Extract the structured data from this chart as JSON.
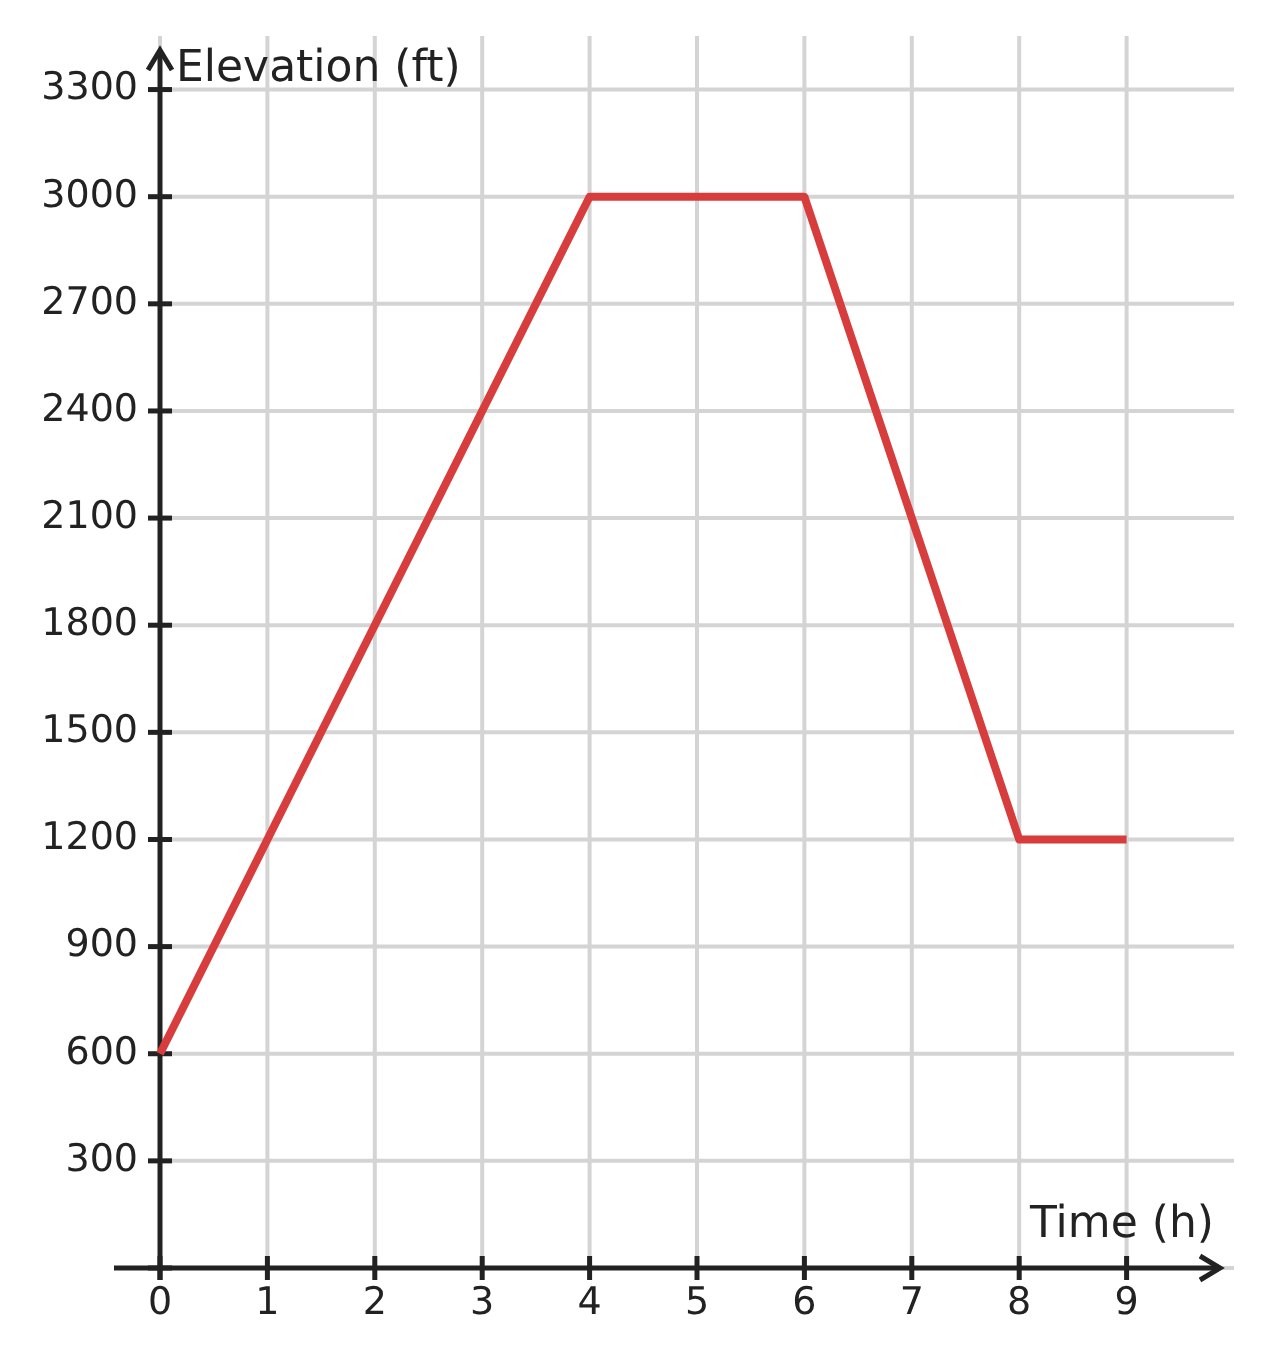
{
  "chart_data": {
    "type": "line",
    "xlabel": "Time (h)",
    "ylabel": "Elevation (ft)",
    "x": [
      0,
      4,
      6,
      8,
      9
    ],
    "series": [
      {
        "color": "#d73d3d",
        "values": [
          600,
          3000,
          3000,
          1200,
          1200
        ]
      }
    ],
    "xlim": [
      0,
      10
    ],
    "ylim": [
      0,
      3450
    ],
    "xticks": [
      0,
      1,
      2,
      3,
      4,
      5,
      6,
      7,
      8,
      9
    ],
    "yticks": [
      {
        "value": 0,
        "label": null
      },
      300,
      600,
      900,
      1200,
      1500,
      1800,
      2100,
      2400,
      2700,
      3000,
      3300
    ],
    "grid": true,
    "marker": "none",
    "line_style": "solid"
  }
}
